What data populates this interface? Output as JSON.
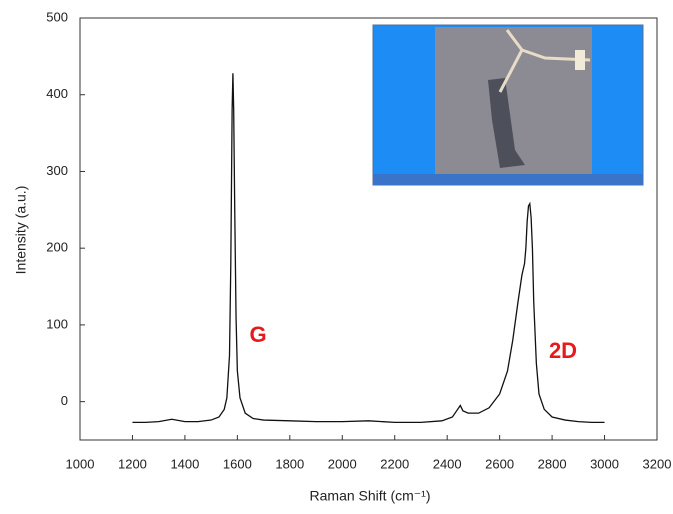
{
  "chart_data": {
    "type": "line",
    "x_label": "Raman Shift (cm⁻¹)",
    "y_label": "Intensity (a.u.)",
    "annotations": [
      "G",
      "2D"
    ],
    "annotation_color": "#e8191c",
    "x": [
      1200,
      1250,
      1300,
      1350,
      1400,
      1450,
      1500,
      1530,
      1550,
      1560,
      1570,
      1575,
      1580,
      1583,
      1586,
      1590,
      1595,
      1600,
      1610,
      1630,
      1660,
      1700,
      1800,
      1900,
      2000,
      2100,
      2200,
      2300,
      2380,
      2420,
      2440,
      2450,
      2460,
      2480,
      2520,
      2560,
      2600,
      2630,
      2650,
      2670,
      2685,
      2695,
      2700,
      2705,
      2710,
      2715,
      2720,
      2725,
      2730,
      2740,
      2750,
      2770,
      2800,
      2850,
      2900,
      2950,
      3000
    ],
    "values": [
      -27,
      -27,
      -26,
      -23,
      -26,
      -26,
      -24,
      -20,
      -10,
      5,
      60,
      180,
      380,
      428,
      380,
      250,
      110,
      40,
      5,
      -15,
      -22,
      -24,
      -25,
      -26,
      -26,
      -25,
      -27,
      -27,
      -25,
      -20,
      -10,
      -5,
      -12,
      -15,
      -15,
      -8,
      10,
      40,
      80,
      130,
      165,
      180,
      200,
      235,
      255,
      258,
      240,
      200,
      130,
      50,
      10,
      -10,
      -20,
      -24,
      -26,
      -27,
      -27
    ],
    "color": "#111111",
    "xlim": [
      1000,
      3200
    ],
    "xticks": [
      1000,
      1200,
      1400,
      1600,
      1800,
      2000,
      2200,
      2400,
      2600,
      2800,
      3000,
      3200
    ],
    "ylim": [
      -50,
      500
    ],
    "yticks": [
      0,
      100,
      200,
      300,
      400,
      500
    ]
  }
}
